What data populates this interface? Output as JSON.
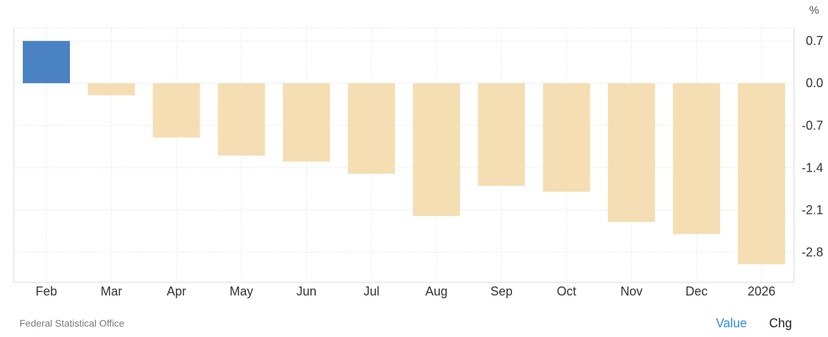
{
  "colors": {
    "positive": "#4a82c3",
    "negative": "#f5deb3",
    "grid": "#e6e6e6",
    "axis": "#d8d8d8",
    "tab_active": "#2f8fe0"
  },
  "footer": {
    "source": "Federal Statistical Office",
    "tabs": [
      "Value",
      "Chg"
    ]
  },
  "chart_data": {
    "type": "bar",
    "unit": "%",
    "categories": [
      "Feb",
      "Mar",
      "Apr",
      "May",
      "Jun",
      "Jul",
      "Aug",
      "Sep",
      "Oct",
      "Nov",
      "Dec",
      "2026"
    ],
    "values": [
      0.7,
      -0.2,
      -0.9,
      -1.2,
      -1.3,
      -1.5,
      -2.2,
      -1.7,
      -1.8,
      -2.3,
      -2.5,
      -3.0
    ],
    "yticks": [
      0.7,
      0.0,
      -0.7,
      -1.4,
      -2.1,
      -2.8
    ],
    "ytick_labels": [
      "0.7",
      "0.0",
      "-0.7",
      "-1.4",
      "-2.1",
      "-2.8"
    ],
    "ylim": [
      -3.3,
      0.92
    ],
    "y_axis_position": "right",
    "grid": true,
    "legend": "none"
  }
}
